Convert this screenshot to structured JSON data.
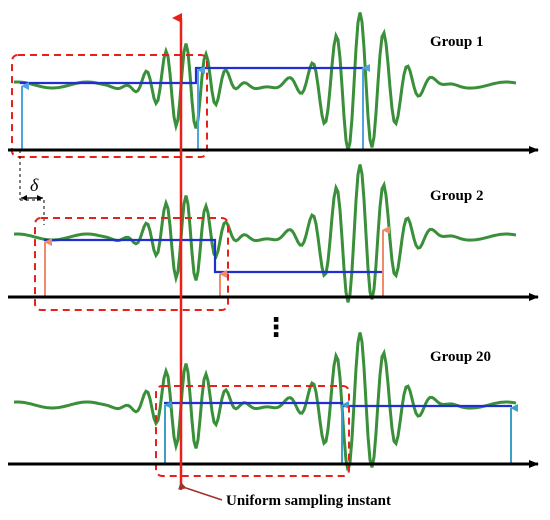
{
  "groups": [
    {
      "label": "Group 1"
    },
    {
      "label": "Group 2"
    },
    {
      "label": "Group 20"
    }
  ],
  "delta_symbol": "δ",
  "ellipsis": "⋮",
  "caption": "Uniform sampling instant",
  "colors": {
    "signal": "#3a8f3a",
    "hold_line": "#1f2fd0",
    "sampling_line": "#e8201a",
    "window_box": "#e8201a",
    "arrow_blue": "#4fa3e0",
    "arrow_orange": "#f08a6a",
    "arrow_teal": "#3aa0c8",
    "axis": "#000000"
  }
}
